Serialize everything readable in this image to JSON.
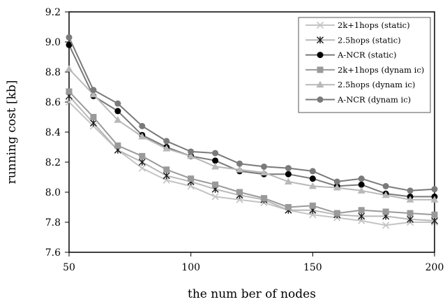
{
  "chart_data": {
    "type": "line",
    "xlabel": "the num ber of nodes",
    "ylabel": "running cost [kb]",
    "xlim": [
      50,
      200
    ],
    "ylim": [
      7.6,
      9.2
    ],
    "x_ticks": [
      "50",
      "100",
      "150",
      "200"
    ],
    "y_ticks": [
      "7.6",
      "7.8",
      "8.0",
      "8.2",
      "8.4",
      "8.6",
      "8.8",
      "9.0",
      "9.2"
    ],
    "grid": false,
    "legend_position": "top-right",
    "x": [
      50,
      60,
      70,
      80,
      90,
      100,
      110,
      120,
      130,
      140,
      150,
      160,
      170,
      180,
      190,
      200
    ],
    "series": [
      {
        "name": "2k+1hops (static)",
        "marker": "x",
        "color": "#c4c4c4",
        "values": [
          8.6,
          8.44,
          8.28,
          8.16,
          8.08,
          8.04,
          7.97,
          7.95,
          7.93,
          7.88,
          7.85,
          7.83,
          7.81,
          7.78,
          7.8,
          7.8
        ]
      },
      {
        "name": "2.5hops (static)",
        "marker": "asterisk",
        "color": "#1a1a1a",
        "line_color": "#b8b8b8",
        "values": [
          8.64,
          8.46,
          8.28,
          8.2,
          8.11,
          8.07,
          8.02,
          7.98,
          7.95,
          7.88,
          7.88,
          7.85,
          7.84,
          7.84,
          7.82,
          7.81
        ]
      },
      {
        "name": "A-NCR (static)",
        "marker": "circle",
        "color": "#000000",
        "line_color": "#7a7a7a",
        "values": [
          8.98,
          8.64,
          8.54,
          8.38,
          8.3,
          8.24,
          8.21,
          8.14,
          8.12,
          8.12,
          8.09,
          8.04,
          8.05,
          7.99,
          7.97,
          7.97
        ]
      },
      {
        "name": "2k+1hops (dynam ic)",
        "marker": "square",
        "color": "#9a9a9a",
        "values": [
          8.67,
          8.5,
          8.31,
          8.24,
          8.15,
          8.09,
          8.05,
          8.0,
          7.96,
          7.9,
          7.91,
          7.86,
          7.88,
          7.87,
          7.86,
          7.85
        ]
      },
      {
        "name": "2.5hops (dynam ic)",
        "marker": "triangle",
        "color": "#b8b8b8",
        "values": [
          8.82,
          8.65,
          8.48,
          8.37,
          8.29,
          8.24,
          8.17,
          8.15,
          8.13,
          8.07,
          8.04,
          8.03,
          8.01,
          7.98,
          7.95,
          7.95
        ]
      },
      {
        "name": "A-NCR (dynam ic)",
        "marker": "circle",
        "color": "#7a7a7a",
        "values": [
          9.03,
          8.68,
          8.59,
          8.44,
          8.34,
          8.27,
          8.26,
          8.19,
          8.17,
          8.16,
          8.14,
          8.07,
          8.09,
          8.04,
          8.01,
          8.02
        ]
      }
    ]
  }
}
